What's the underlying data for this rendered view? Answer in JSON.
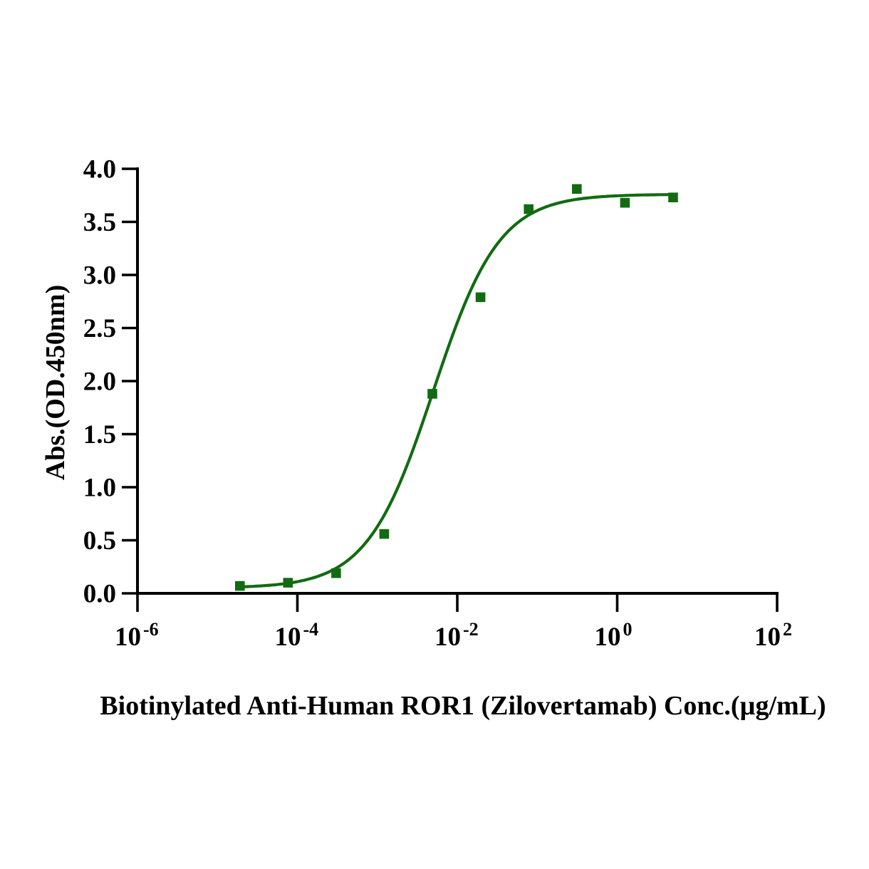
{
  "figure": {
    "background": "#ffffff",
    "text_color": "#000000",
    "accent_color": "#126b12"
  },
  "chart_data": {
    "type": "scatter",
    "title": "",
    "xlabel": "Biotinylated Anti-Human ROR1 (Zilovertamab) Conc.(µg/mL)",
    "ylabel": "Abs.(OD.450nm)",
    "x_scale": "log10",
    "x_range_exponents": [
      -6,
      2
    ],
    "x_tick_base": "10",
    "x_tick_exponents": [
      "-6",
      "-4",
      "-2",
      "0",
      "2"
    ],
    "ylim": [
      0,
      4
    ],
    "y_ticks": [
      0,
      0.5,
      1,
      1.5,
      2,
      2.5,
      3,
      3.5,
      4
    ],
    "y_tick_labels": [
      "0.0",
      "0.5",
      "1.0",
      "1.5",
      "2.0",
      "2.5",
      "3.0",
      "3.5",
      "4.0"
    ],
    "grid": false,
    "legend": "none",
    "series": [
      {
        "name": "Biotinylated Anti-Human ROR1 (Zilovertamab)",
        "marker": "square",
        "color": "#126b12",
        "points": [
          {
            "x": 1.91e-05,
            "y": 0.07
          },
          {
            "x": 7.63e-05,
            "y": 0.1
          },
          {
            "x": 0.000305,
            "y": 0.19
          },
          {
            "x": 0.00122,
            "y": 0.56
          },
          {
            "x": 0.00488,
            "y": 1.88
          },
          {
            "x": 0.0195,
            "y": 2.79
          },
          {
            "x": 0.0781,
            "y": 3.62
          },
          {
            "x": 0.3125,
            "y": 3.81
          },
          {
            "x": 1.25,
            "y": 3.68
          },
          {
            "x": 5,
            "y": 3.73
          }
        ]
      }
    ],
    "fit_curve": {
      "model": "4PL-sigmoid",
      "bottom": 0.05,
      "top": 3.76,
      "ec50": 0.005,
      "hill": 1.05,
      "x_start": 1.91e-05,
      "x_end": 5,
      "color": "#126b12"
    }
  }
}
